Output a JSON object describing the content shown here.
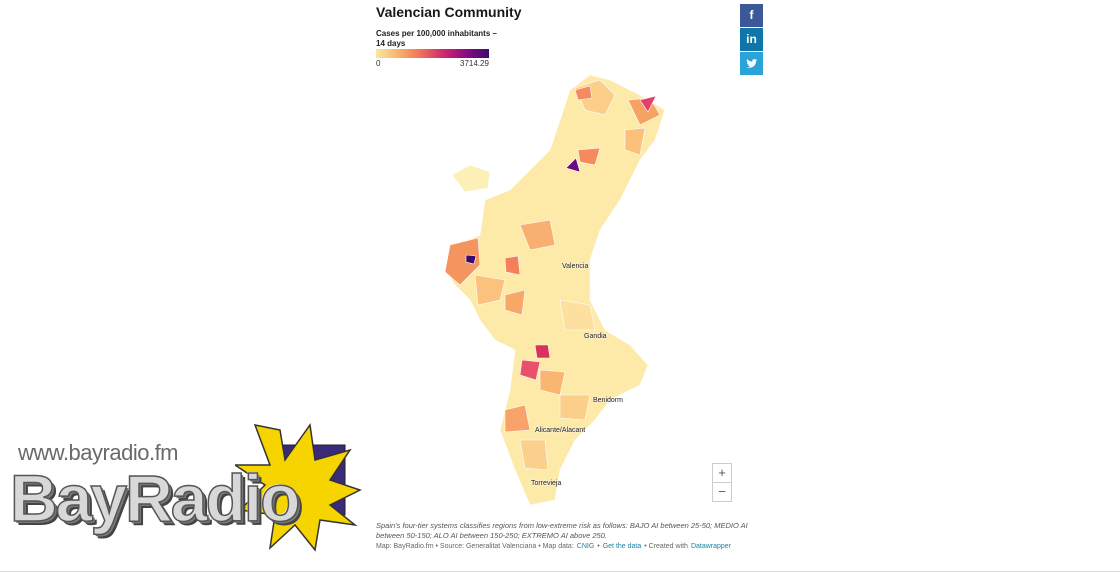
{
  "header": {
    "title": "Valencian Community"
  },
  "legend": {
    "title": "Cases per 100,000 inhabitants – 14 days",
    "min": 0,
    "max": 3714.29
  },
  "social": {
    "facebook": "f",
    "linkedin": "in"
  },
  "map": {
    "places": [
      "Valencia",
      "Gandia",
      "Benidorm",
      "Alicante/Alacant",
      "Torrevieja"
    ]
  },
  "zoom": {
    "in": "+",
    "out": "−"
  },
  "notes": {
    "text": "Spain's four-tier systems classifies regions from low-extreme risk as follows: BAJO AI between 25-50; MEDIO AI between 50-150; ALO AI between 150-250; EXTREMO AI above 250.",
    "source": [
      {
        "text": "Map: BayRadio.fm • Source: Generalitat Valenciana • Map data:",
        "link": false
      },
      {
        "text": "CNIG",
        "link": true
      },
      {
        "text": "•",
        "link": false
      },
      {
        "text": "Get the data",
        "link": true
      },
      {
        "text": "• Created with",
        "link": false
      },
      {
        "text": "Datawrapper",
        "link": true
      }
    ]
  },
  "watermark": {
    "url": "www.bayradio.fm",
    "brand": "BayRadio"
  }
}
